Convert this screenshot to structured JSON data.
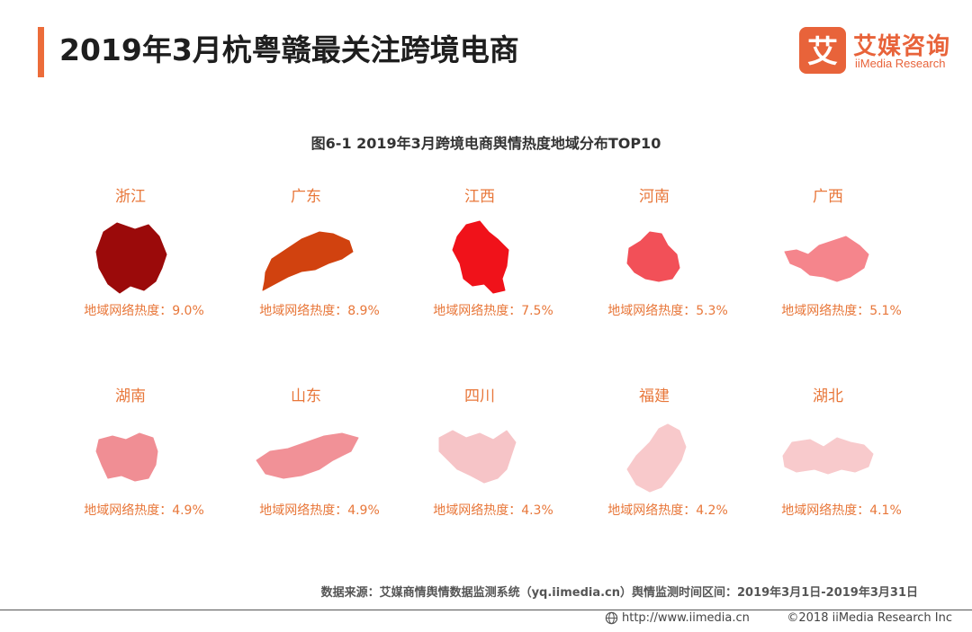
{
  "header": {
    "title": "2019年3月杭粤赣最关注跨境电商",
    "logo_cn": "艾媒咨询",
    "logo_en": "iiMedia Research",
    "logo_mark": "艾"
  },
  "colors": {
    "accent": "#ec6c3a",
    "label_orange": "#e8773a"
  },
  "chart_data": {
    "type": "bar",
    "title": "图6-1  2019年3月跨境电商舆情热度地域分布TOP10",
    "value_label": "地域网络热度：",
    "unit": "%",
    "categories": [
      "浙江",
      "广东",
      "江西",
      "河南",
      "广西",
      "湖南",
      "山东",
      "四川",
      "福建",
      "湖北"
    ],
    "values": [
      9.0,
      8.9,
      7.5,
      5.3,
      5.1,
      4.9,
      4.9,
      4.3,
      4.2,
      4.1
    ],
    "value_texts": [
      "9.0%",
      "8.9%",
      "7.5%",
      "5.3%",
      "5.1%",
      "4.9%",
      "4.9%",
      "4.3%",
      "4.2%",
      "4.1%"
    ],
    "fill_colors": [
      "#9b0a0a",
      "#d1420f",
      "#f0121a",
      "#f25058",
      "#f5858c",
      "#f08e94",
      "#f19197",
      "#f6c4c7",
      "#f8c9cb",
      "#f8cacc"
    ]
  },
  "footer": {
    "source": "数据来源：艾媒商情舆情数据监测系统（yq.iimedia.cn）舆情监测时间区间：2019年3月1日-2019年3月31日",
    "url": "http://www.iimedia.cn",
    "copyright": "©2018  iiMedia Research  Inc",
    "url_icon": "globe-icon"
  }
}
